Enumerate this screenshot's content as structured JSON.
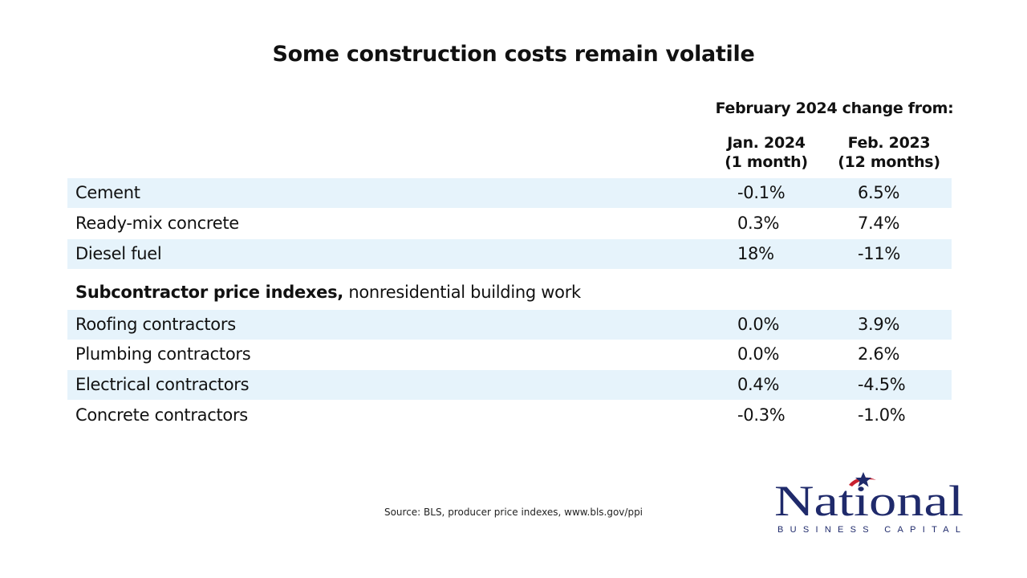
{
  "title": "Some construction costs remain volatile",
  "table": {
    "group_header": "February 2024 change from:",
    "columns": [
      {
        "line1": "Jan. 2024",
        "line2": "(1 month)"
      },
      {
        "line1": "Feb. 2023",
        "line2": "(12 months)"
      }
    ],
    "rows": [
      {
        "label": "Cement",
        "v1": "-0.1%",
        "v2": "6.5%"
      },
      {
        "label": "Ready-mix concrete",
        "v1": "0.3%",
        "v2": "7.4%"
      },
      {
        "label": "Diesel fuel",
        "v1": "18%",
        "v2": "-11%"
      }
    ],
    "subheader": {
      "bold": "Subcontractor price indexes,",
      "rest": " nonresidential building work"
    },
    "sub_rows": [
      {
        "label": "Roofing contractors",
        "v1": "0.0%",
        "v2": "3.9%"
      },
      {
        "label": "Plumbing contractors",
        "v1": "0.0%",
        "v2": "2.6%"
      },
      {
        "label": "Electrical contractors",
        "v1": "0.4%",
        "v2": "-4.5%"
      },
      {
        "label": "Concrete contractors",
        "v1": "-0.3%",
        "v2": "-1.0%"
      }
    ]
  },
  "source": "Source: BLS, producer price indexes, www.bls.gov/ppi",
  "logo": {
    "name": "National",
    "tagline": "BUSINESS CAPITAL",
    "colors": {
      "navy": "#1f2a6b",
      "red": "#c8202f"
    }
  },
  "colors": {
    "row_shade": "#e6f3fb"
  }
}
